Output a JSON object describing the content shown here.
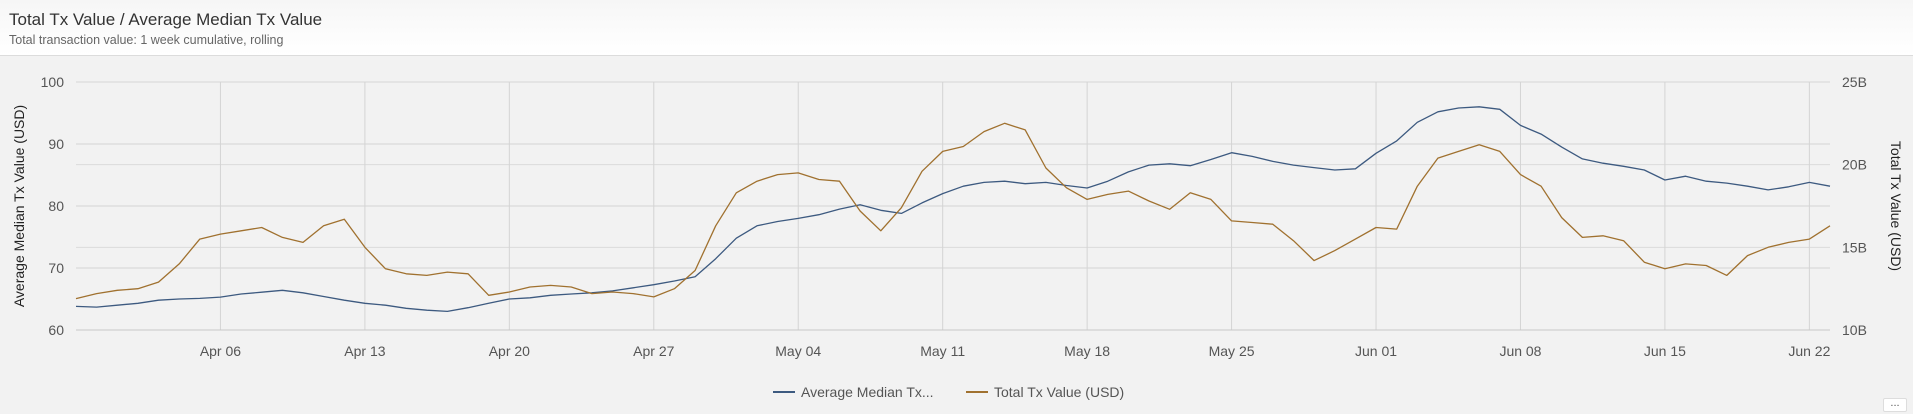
{
  "header": {
    "title": "Total Tx Value / Average Median Tx Value",
    "subtitle": "Total transaction value: 1 week cumulative, rolling"
  },
  "menu_button": {
    "label": "..."
  },
  "colors": {
    "left_series": "#3d5a80",
    "right_series": "#a0712f",
    "grid": "#d4d4d4",
    "plot_background": "#f2f2f2"
  },
  "chart_data": {
    "type": "line",
    "title": "Total Tx Value / Average Median Tx Value",
    "subtitle": "Total transaction value: 1 week cumulative, rolling",
    "x_range": [
      "2023-03-30",
      "2023-06-23"
    ],
    "x_ticks": [
      {
        "date": "2023-04-06",
        "label": "Apr 06"
      },
      {
        "date": "2023-04-13",
        "label": "Apr 13"
      },
      {
        "date": "2023-04-20",
        "label": "Apr 20"
      },
      {
        "date": "2023-04-27",
        "label": "Apr 27"
      },
      {
        "date": "2023-05-04",
        "label": "May 04"
      },
      {
        "date": "2023-05-11",
        "label": "May 11"
      },
      {
        "date": "2023-05-18",
        "label": "May 18"
      },
      {
        "date": "2023-05-25",
        "label": "May 25"
      },
      {
        "date": "2023-06-01",
        "label": "Jun 01"
      },
      {
        "date": "2023-06-08",
        "label": "Jun 08"
      },
      {
        "date": "2023-06-15",
        "label": "Jun 15"
      },
      {
        "date": "2023-06-22",
        "label": "Jun 22"
      }
    ],
    "y_left": {
      "label": "Average Median Tx Value (USD)",
      "range": [
        60,
        100
      ],
      "ticks": [
        {
          "value": 60,
          "label": "60"
        },
        {
          "value": 70,
          "label": "70"
        },
        {
          "value": 80,
          "label": "80"
        },
        {
          "value": 90,
          "label": "90"
        },
        {
          "value": 100,
          "label": "100"
        }
      ]
    },
    "y_right": {
      "label": "Total Tx Value (USD)",
      "range": [
        10,
        25
      ],
      "unit": "B",
      "ticks": [
        {
          "value": 10,
          "label": "10B"
        },
        {
          "value": 15,
          "label": "15B"
        },
        {
          "value": 20,
          "label": "20B"
        },
        {
          "value": 25,
          "label": "25B"
        }
      ]
    },
    "grid": true,
    "legend_position": "bottom-center",
    "series": [
      {
        "name": "Average Median Tx...",
        "axis": "left",
        "color": "#3d5a80",
        "points": [
          [
            "2023-03-30",
            63.8
          ],
          [
            "2023-03-31",
            63.7
          ],
          [
            "2023-04-01",
            64.0
          ],
          [
            "2023-04-02",
            64.3
          ],
          [
            "2023-04-03",
            64.8
          ],
          [
            "2023-04-04",
            65.0
          ],
          [
            "2023-04-05",
            65.1
          ],
          [
            "2023-04-06",
            65.3
          ],
          [
            "2023-04-07",
            65.8
          ],
          [
            "2023-04-08",
            66.1
          ],
          [
            "2023-04-09",
            66.4
          ],
          [
            "2023-04-10",
            66.0
          ],
          [
            "2023-04-11",
            65.4
          ],
          [
            "2023-04-12",
            64.8
          ],
          [
            "2023-04-13",
            64.3
          ],
          [
            "2023-04-14",
            64.0
          ],
          [
            "2023-04-15",
            63.5
          ],
          [
            "2023-04-16",
            63.2
          ],
          [
            "2023-04-17",
            63.0
          ],
          [
            "2023-04-18",
            63.6
          ],
          [
            "2023-04-19",
            64.3
          ],
          [
            "2023-04-20",
            65.0
          ],
          [
            "2023-04-21",
            65.2
          ],
          [
            "2023-04-22",
            65.6
          ],
          [
            "2023-04-23",
            65.8
          ],
          [
            "2023-04-24",
            66.0
          ],
          [
            "2023-04-25",
            66.3
          ],
          [
            "2023-04-26",
            66.8
          ],
          [
            "2023-04-27",
            67.3
          ],
          [
            "2023-04-28",
            67.9
          ],
          [
            "2023-04-29",
            68.6
          ],
          [
            "2023-04-30",
            71.5
          ],
          [
            "2023-05-01",
            74.8
          ],
          [
            "2023-05-02",
            76.8
          ],
          [
            "2023-05-03",
            77.5
          ],
          [
            "2023-05-04",
            78.0
          ],
          [
            "2023-05-05",
            78.6
          ],
          [
            "2023-05-06",
            79.5
          ],
          [
            "2023-05-07",
            80.2
          ],
          [
            "2023-05-08",
            79.3
          ],
          [
            "2023-05-09",
            78.8
          ],
          [
            "2023-05-10",
            80.5
          ],
          [
            "2023-05-11",
            82.0
          ],
          [
            "2023-05-12",
            83.2
          ],
          [
            "2023-05-13",
            83.8
          ],
          [
            "2023-05-14",
            84.0
          ],
          [
            "2023-05-15",
            83.6
          ],
          [
            "2023-05-16",
            83.8
          ],
          [
            "2023-05-17",
            83.3
          ],
          [
            "2023-05-18",
            82.9
          ],
          [
            "2023-05-19",
            84.0
          ],
          [
            "2023-05-20",
            85.5
          ],
          [
            "2023-05-21",
            86.6
          ],
          [
            "2023-05-22",
            86.8
          ],
          [
            "2023-05-23",
            86.5
          ],
          [
            "2023-05-24",
            87.5
          ],
          [
            "2023-05-25",
            88.6
          ],
          [
            "2023-05-26",
            88.0
          ],
          [
            "2023-05-27",
            87.2
          ],
          [
            "2023-05-28",
            86.6
          ],
          [
            "2023-05-29",
            86.2
          ],
          [
            "2023-05-30",
            85.8
          ],
          [
            "2023-05-31",
            86.0
          ],
          [
            "2023-06-01",
            88.5
          ],
          [
            "2023-06-02",
            90.5
          ],
          [
            "2023-06-03",
            93.5
          ],
          [
            "2023-06-04",
            95.2
          ],
          [
            "2023-06-05",
            95.8
          ],
          [
            "2023-06-06",
            96.0
          ],
          [
            "2023-06-07",
            95.6
          ],
          [
            "2023-06-08",
            93.0
          ],
          [
            "2023-06-09",
            91.6
          ],
          [
            "2023-06-10",
            89.5
          ],
          [
            "2023-06-11",
            87.6
          ],
          [
            "2023-06-12",
            86.9
          ],
          [
            "2023-06-13",
            86.4
          ],
          [
            "2023-06-14",
            85.8
          ],
          [
            "2023-06-15",
            84.2
          ],
          [
            "2023-06-16",
            84.8
          ],
          [
            "2023-06-17",
            84.0
          ],
          [
            "2023-06-18",
            83.7
          ],
          [
            "2023-06-19",
            83.2
          ],
          [
            "2023-06-20",
            82.6
          ],
          [
            "2023-06-21",
            83.1
          ],
          [
            "2023-06-22",
            83.8
          ],
          [
            "2023-06-23",
            83.2
          ]
        ]
      },
      {
        "name": "Total Tx Value (USD)",
        "axis": "right",
        "color": "#a0712f",
        "points": [
          [
            "2023-03-30",
            11.9
          ],
          [
            "2023-03-31",
            12.2
          ],
          [
            "2023-04-01",
            12.4
          ],
          [
            "2023-04-02",
            12.5
          ],
          [
            "2023-04-03",
            12.9
          ],
          [
            "2023-04-04",
            14.0
          ],
          [
            "2023-04-05",
            15.5
          ],
          [
            "2023-04-06",
            15.8
          ],
          [
            "2023-04-07",
            16.0
          ],
          [
            "2023-04-08",
            16.2
          ],
          [
            "2023-04-09",
            15.6
          ],
          [
            "2023-04-10",
            15.3
          ],
          [
            "2023-04-11",
            16.3
          ],
          [
            "2023-04-12",
            16.7
          ],
          [
            "2023-04-13",
            15.0
          ],
          [
            "2023-04-14",
            13.7
          ],
          [
            "2023-04-15",
            13.4
          ],
          [
            "2023-04-16",
            13.3
          ],
          [
            "2023-04-17",
            13.5
          ],
          [
            "2023-04-18",
            13.4
          ],
          [
            "2023-04-19",
            12.1
          ],
          [
            "2023-04-20",
            12.3
          ],
          [
            "2023-04-21",
            12.6
          ],
          [
            "2023-04-22",
            12.7
          ],
          [
            "2023-04-23",
            12.6
          ],
          [
            "2023-04-24",
            12.2
          ],
          [
            "2023-04-25",
            12.3
          ],
          [
            "2023-04-26",
            12.2
          ],
          [
            "2023-04-27",
            12.0
          ],
          [
            "2023-04-28",
            12.5
          ],
          [
            "2023-04-29",
            13.6
          ],
          [
            "2023-04-30",
            16.3
          ],
          [
            "2023-05-01",
            18.3
          ],
          [
            "2023-05-02",
            19.0
          ],
          [
            "2023-05-03",
            19.4
          ],
          [
            "2023-05-04",
            19.5
          ],
          [
            "2023-05-05",
            19.1
          ],
          [
            "2023-05-06",
            19.0
          ],
          [
            "2023-05-07",
            17.2
          ],
          [
            "2023-05-08",
            16.0
          ],
          [
            "2023-05-09",
            17.4
          ],
          [
            "2023-05-10",
            19.6
          ],
          [
            "2023-05-11",
            20.8
          ],
          [
            "2023-05-12",
            21.1
          ],
          [
            "2023-05-13",
            22.0
          ],
          [
            "2023-05-14",
            22.5
          ],
          [
            "2023-05-15",
            22.1
          ],
          [
            "2023-05-16",
            19.8
          ],
          [
            "2023-05-17",
            18.6
          ],
          [
            "2023-05-18",
            17.9
          ],
          [
            "2023-05-19",
            18.2
          ],
          [
            "2023-05-20",
            18.4
          ],
          [
            "2023-05-21",
            17.8
          ],
          [
            "2023-05-22",
            17.3
          ],
          [
            "2023-05-23",
            18.3
          ],
          [
            "2023-05-24",
            17.9
          ],
          [
            "2023-05-25",
            16.6
          ],
          [
            "2023-05-26",
            16.5
          ],
          [
            "2023-05-27",
            16.4
          ],
          [
            "2023-05-28",
            15.4
          ],
          [
            "2023-05-29",
            14.2
          ],
          [
            "2023-05-30",
            14.8
          ],
          [
            "2023-05-31",
            15.5
          ],
          [
            "2023-06-01",
            16.2
          ],
          [
            "2023-06-02",
            16.1
          ],
          [
            "2023-06-03",
            18.7
          ],
          [
            "2023-06-04",
            20.4
          ],
          [
            "2023-06-05",
            20.8
          ],
          [
            "2023-06-06",
            21.2
          ],
          [
            "2023-06-07",
            20.8
          ],
          [
            "2023-06-08",
            19.4
          ],
          [
            "2023-06-09",
            18.7
          ],
          [
            "2023-06-10",
            16.8
          ],
          [
            "2023-06-11",
            15.6
          ],
          [
            "2023-06-12",
            15.7
          ],
          [
            "2023-06-13",
            15.4
          ],
          [
            "2023-06-14",
            14.1
          ],
          [
            "2023-06-15",
            13.7
          ],
          [
            "2023-06-16",
            14.0
          ],
          [
            "2023-06-17",
            13.9
          ],
          [
            "2023-06-18",
            13.3
          ],
          [
            "2023-06-19",
            14.5
          ],
          [
            "2023-06-20",
            15.0
          ],
          [
            "2023-06-21",
            15.3
          ],
          [
            "2023-06-22",
            15.5
          ],
          [
            "2023-06-23",
            16.3
          ]
        ]
      }
    ]
  }
}
